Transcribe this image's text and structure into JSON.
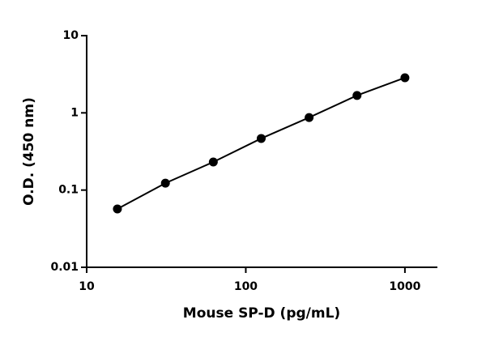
{
  "chart_data": {
    "type": "scatter",
    "x_label": "Mouse SP-D (pg/mL)",
    "y_label": "O.D. (450 nm)",
    "x_log": true,
    "y_log": true,
    "xlim": [
      10,
      1600
    ],
    "ylim": [
      0.01,
      10
    ],
    "xticks": [
      10,
      100,
      1000
    ],
    "yticks": [
      0.01,
      0.1,
      1,
      10
    ],
    "series": [
      {
        "color": "#000000",
        "x": [
          15.6,
          31.25,
          62.5,
          125,
          250,
          500,
          1000
        ],
        "values": [
          0.057,
          0.123,
          0.231,
          0.466,
          0.87,
          1.68,
          2.85
        ]
      }
    ]
  }
}
